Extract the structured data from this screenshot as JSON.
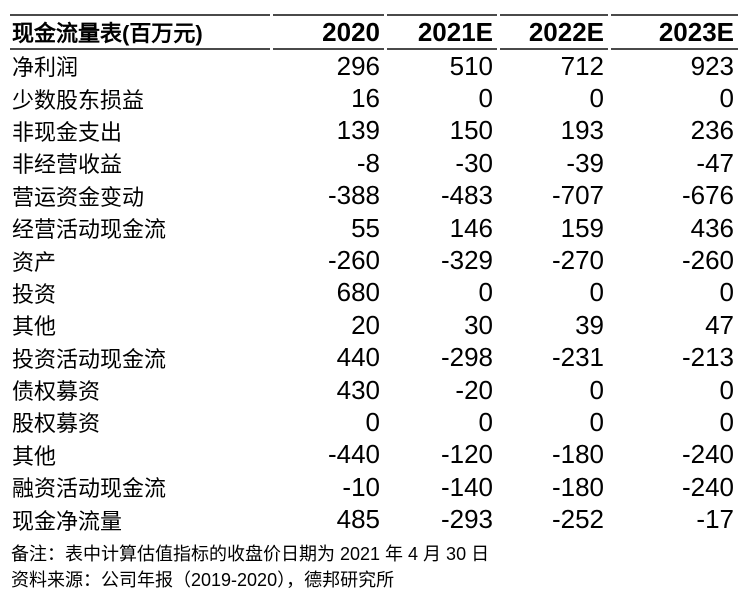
{
  "chart_data": {
    "type": "table",
    "title": "现金流量表(百万元)",
    "columns": [
      "2020",
      "2021E",
      "2022E",
      "2023E"
    ],
    "rows": [
      {
        "label": "净利润",
        "values": [
          "296",
          "510",
          "712",
          "923"
        ]
      },
      {
        "label": "少数股东损益",
        "values": [
          "16",
          "0",
          "0",
          "0"
        ]
      },
      {
        "label": "非现金支出",
        "values": [
          "139",
          "150",
          "193",
          "236"
        ]
      },
      {
        "label": "非经营收益",
        "values": [
          "-8",
          "-30",
          "-39",
          "-47"
        ]
      },
      {
        "label": "营运资金变动",
        "values": [
          "-388",
          "-483",
          "-707",
          "-676"
        ]
      },
      {
        "label": "经营活动现金流",
        "values": [
          "55",
          "146",
          "159",
          "436"
        ]
      },
      {
        "label": "资产",
        "values": [
          "-260",
          "-329",
          "-270",
          "-260"
        ]
      },
      {
        "label": "投资",
        "values": [
          "680",
          "0",
          "0",
          "0"
        ]
      },
      {
        "label": "其他",
        "values": [
          "20",
          "30",
          "39",
          "47"
        ]
      },
      {
        "label": "投资活动现金流",
        "values": [
          "440",
          "-298",
          "-231",
          "-213"
        ]
      },
      {
        "label": "债权募资",
        "values": [
          "430",
          "-20",
          "0",
          "0"
        ]
      },
      {
        "label": "股权募资",
        "values": [
          "0",
          "0",
          "0",
          "0"
        ]
      },
      {
        "label": "其他",
        "values": [
          "-440",
          "-120",
          "-180",
          "-240"
        ]
      },
      {
        "label": "融资活动现金流",
        "values": [
          "-10",
          "-140",
          "-180",
          "-240"
        ]
      },
      {
        "label": "现金净流量",
        "values": [
          "485",
          "-293",
          "-252",
          "-17"
        ]
      }
    ],
    "notes": [
      "备注：表中计算估值指标的收盘价日期为 2021 年 4 月 30 日",
      "资料来源：公司年报（2019-2020），德邦研究所"
    ],
    "layout_hints": {
      "grid": "header-rules-only",
      "number_alignment": "right"
    },
    "colors": {
      "text": "#000000",
      "rule": "#4a4a4a",
      "background": "#ffffff"
    }
  }
}
